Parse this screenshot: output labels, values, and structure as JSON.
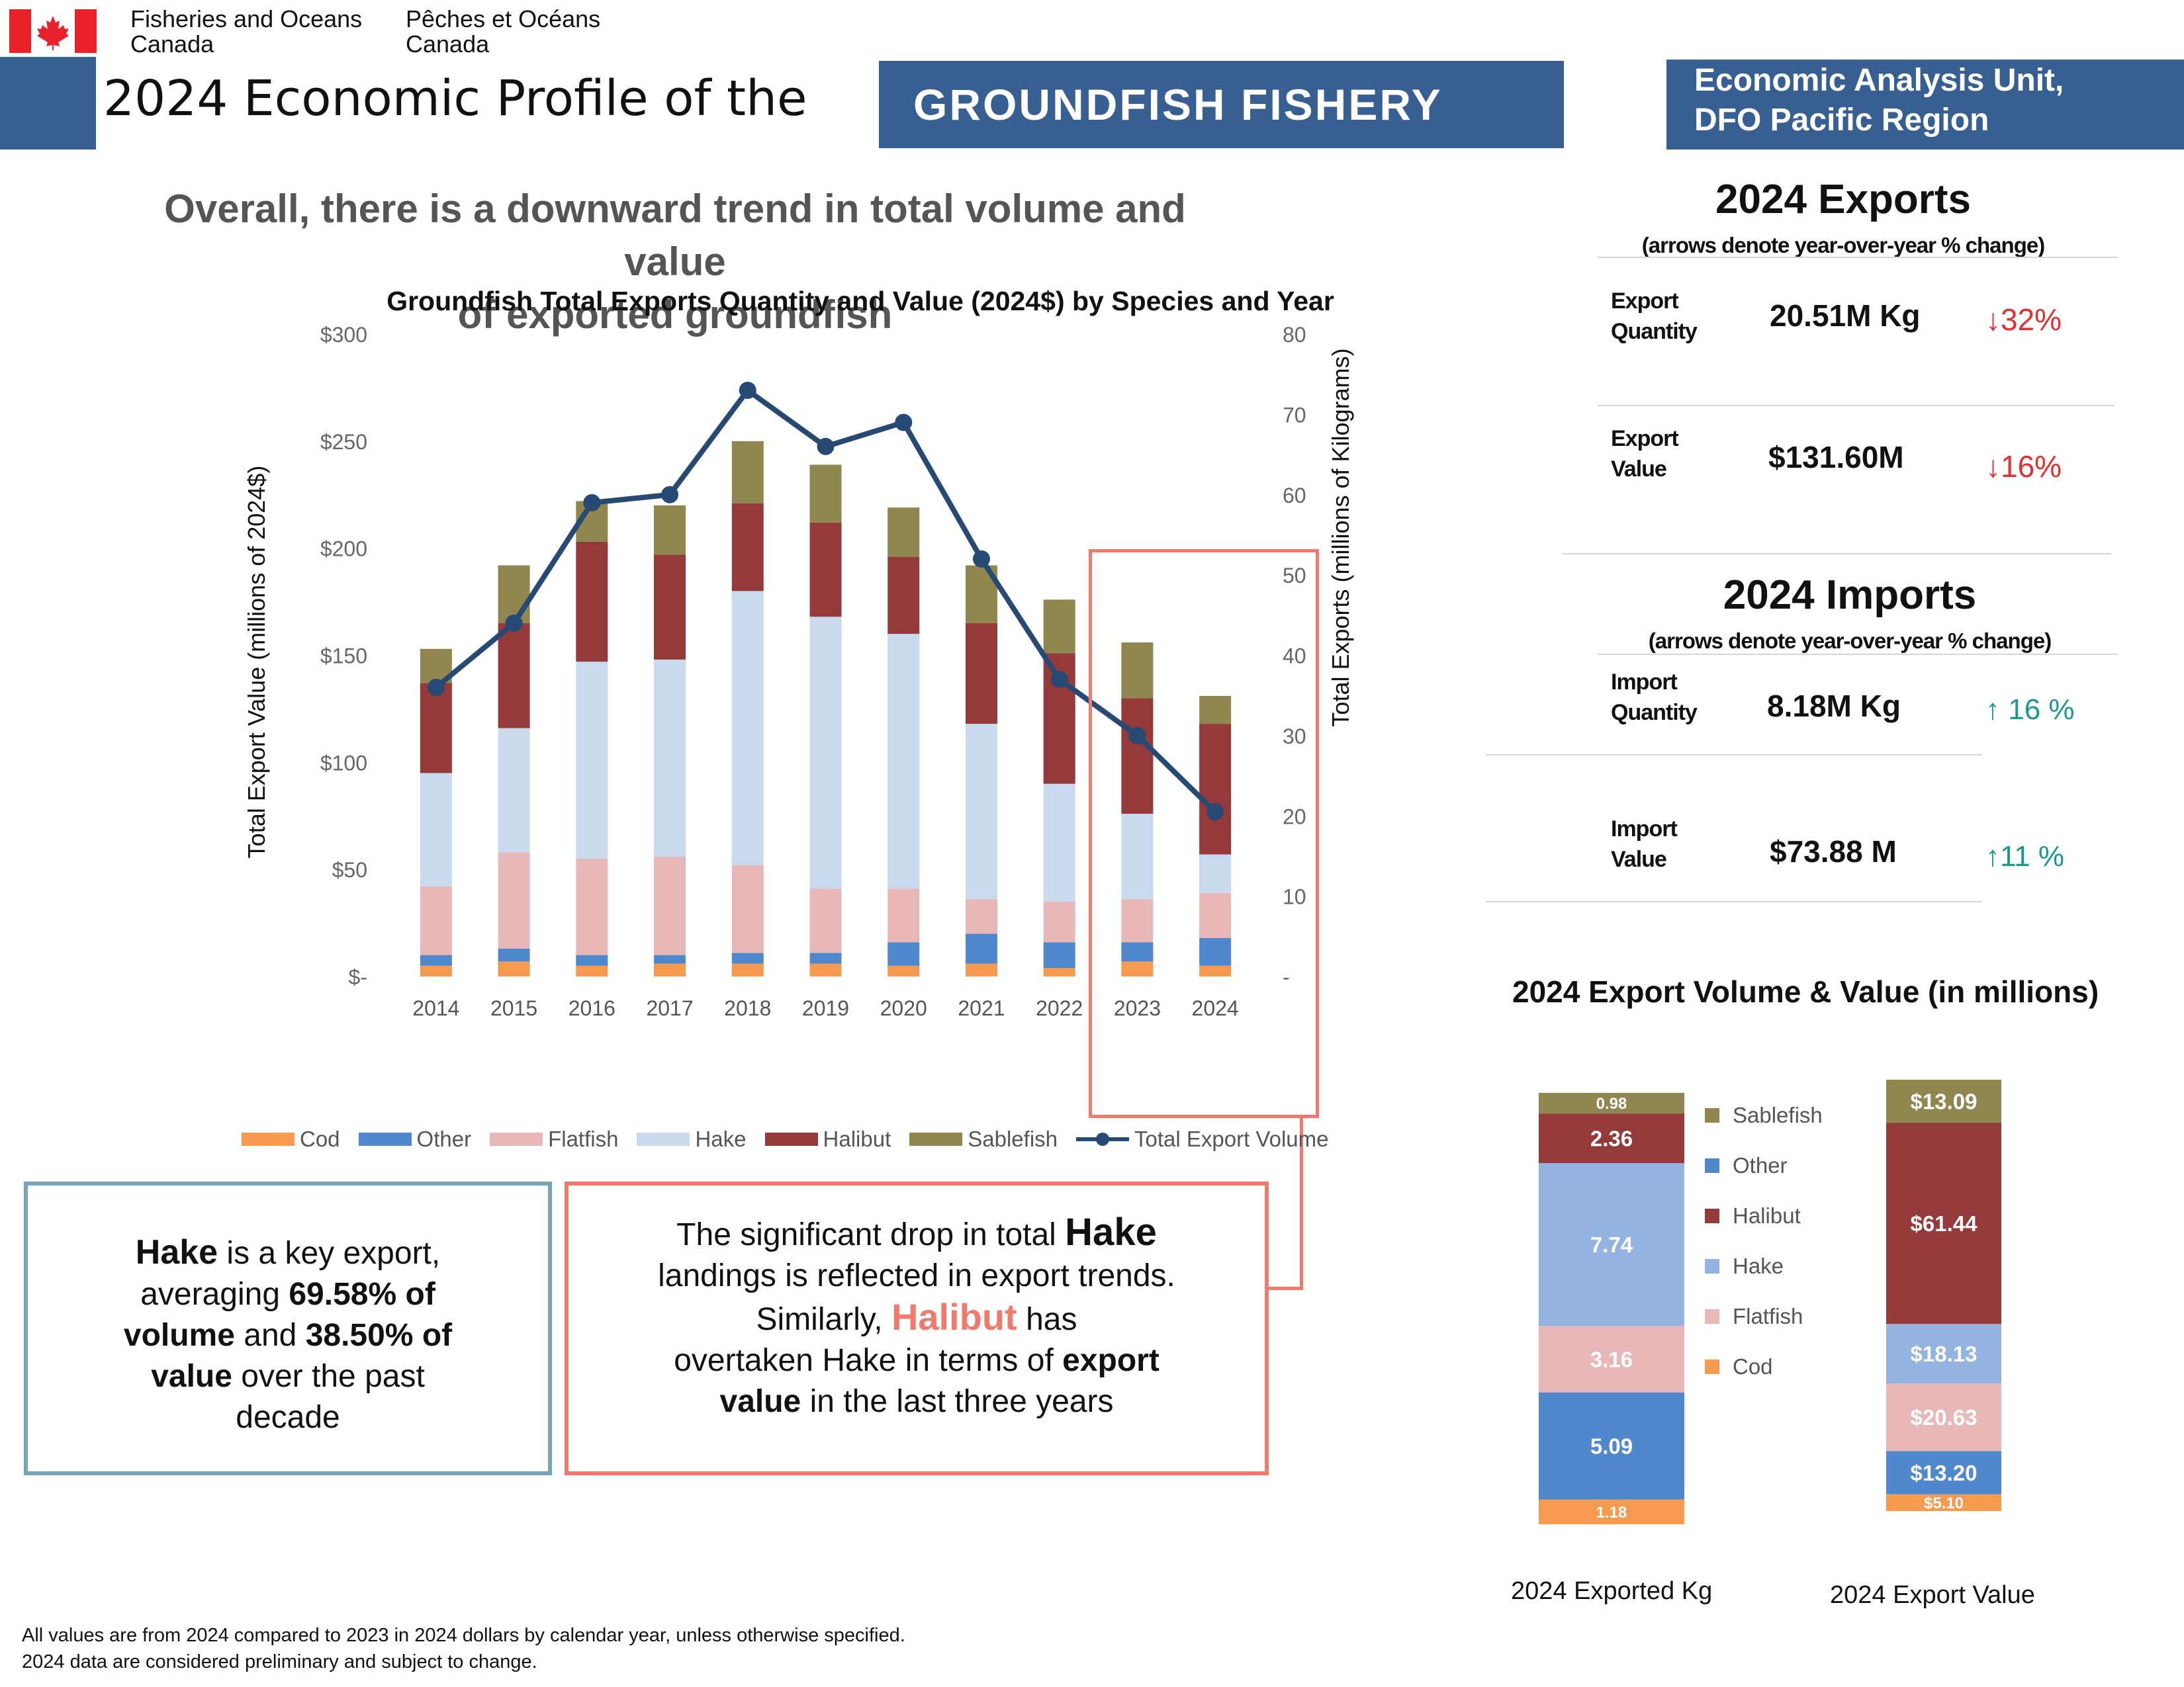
{
  "header": {
    "dept_en_1": "Fisheries and Oceans",
    "dept_en_2": "Canada",
    "dept_fr_1": "Pêches et Océans",
    "dept_fr_2": "Canada",
    "title": "2024 Economic Profile of the",
    "banner": "GROUNDFISH FISHERY",
    "unit_1": "Economic Analysis Unit,",
    "unit_2": "DFO Pacific Region",
    "flag_colors": {
      "red": "#e8212b",
      "white": "#ffffff"
    }
  },
  "headline": {
    "line1": "Overall, there is a downward trend in total volume and value",
    "line2": "of exported groundfish"
  },
  "chart_data": [
    {
      "type": "bar",
      "title": "Groundfish Total Exports Quantity and Value (2024$) by Species and Year",
      "ylabel": "Total Export Value (millions of 2024$)",
      "y2label": "Total Exports (millions of Kilograms)",
      "ylim": [
        0,
        300
      ],
      "y2lim": [
        0,
        80
      ],
      "yticks": [
        "$-",
        "$50",
        "$100",
        "$150",
        "$200",
        "$250",
        "$300"
      ],
      "y2ticks": [
        "-",
        "10",
        "20",
        "30",
        "40",
        "50",
        "60",
        "70",
        "80"
      ],
      "categories": [
        "2014",
        "2015",
        "2016",
        "2017",
        "2018",
        "2019",
        "2020",
        "2021",
        "2022",
        "2023",
        "2024"
      ],
      "stacked": true,
      "legend_position": "bottom",
      "series": [
        {
          "name": "Cod",
          "color": "#f59a4e",
          "values": [
            5,
            7,
            5,
            6,
            6,
            6,
            5,
            6,
            4,
            7,
            5
          ]
        },
        {
          "name": "Other",
          "color": "#4f88cc",
          "values": [
            5,
            6,
            5,
            4,
            5,
            5,
            11,
            14,
            12,
            9,
            13
          ]
        },
        {
          "name": "Flatfish",
          "color": "#e8b8b8",
          "values": [
            32,
            45,
            45,
            46,
            41,
            30,
            25,
            16,
            19,
            20,
            21
          ]
        },
        {
          "name": "Hake",
          "color": "#c9d9ee",
          "values": [
            53,
            58,
            92,
            92,
            128,
            127,
            119,
            82,
            55,
            40,
            18
          ]
        },
        {
          "name": "Halibut",
          "color": "#943a3a",
          "values": [
            42,
            49,
            56,
            49,
            41,
            44,
            36,
            47,
            61,
            54,
            61
          ]
        },
        {
          "name": "Sablefish",
          "color": "#8f8650",
          "values": [
            16,
            27,
            19,
            23,
            29,
            27,
            23,
            27,
            25,
            26,
            13
          ]
        },
        {
          "name": "Total Export Volume",
          "type": "line",
          "axis": "right",
          "color": "#264a73",
          "values": [
            36,
            44,
            59,
            60,
            73,
            66,
            69,
            52,
            37,
            30,
            20.5
          ]
        }
      ]
    },
    {
      "type": "bar",
      "title": "2024 Export Volume & Value (in millions)",
      "categories": [
        "2024 Exported Kg",
        "2024 Export Value"
      ],
      "stacked": true,
      "series": [
        {
          "name": "Cod",
          "color": "#f59a4e",
          "values": [
            1.18,
            5.1
          ],
          "labels": [
            "1.18",
            "$5.10"
          ]
        },
        {
          "name": "Other",
          "color": "#4f88cc",
          "values": [
            5.09,
            13.2
          ],
          "labels": [
            "5.09",
            "$13.20"
          ]
        },
        {
          "name": "Flatfish",
          "color": "#e8b8b8",
          "values": [
            3.16,
            20.63
          ],
          "labels": [
            "3.16",
            "$20.63"
          ]
        },
        {
          "name": "Hake",
          "color": "#93b3e0",
          "values": [
            7.74,
            18.13
          ],
          "labels": [
            "7.74",
            "$18.13"
          ]
        },
        {
          "name": "Halibut",
          "color": "#943a3a",
          "values": [
            2.36,
            61.44
          ],
          "labels": [
            "2.36",
            "$61.44"
          ]
        },
        {
          "name": "Sablefish",
          "color": "#8f8650",
          "values": [
            0.98,
            13.09
          ],
          "labels": [
            "0.98",
            "$13.09"
          ]
        }
      ]
    }
  ],
  "exports": {
    "title": "2024 Exports",
    "note": "(arrows denote year-over-year % change)",
    "qty_label_1": "Export",
    "qty_label_2": "Quantity",
    "qty_value": "20.51M Kg",
    "qty_change": "↓32%",
    "val_label_1": "Export",
    "val_label_2": "Value",
    "val_value": "$131.60M",
    "val_change": "↓16%"
  },
  "imports": {
    "title": "2024 Imports",
    "note": "(arrows denote year-over-year % change)",
    "qty_label_1": "Import",
    "qty_label_2": "Quantity",
    "qty_value": "8.18M  Kg",
    "qty_change": "↑ 16 %",
    "val_label_1": "Import",
    "val_label_2": "Value",
    "val_value": "$73.88 M",
    "val_change": "↑11 %"
  },
  "callout_left": {
    "p1": "Hake",
    "p2": " is a key export,",
    "p3": "averaging ",
    "p4": "69.58% of",
    "p5": "volume",
    "p6": " and ",
    "p7": "38.50% of",
    "p8": "value",
    "p9": " over the past",
    "p10": "decade"
  },
  "callout_right": {
    "p1": "The significant drop in total ",
    "p2": "Hake",
    "p3": "landings is reflected in export trends.",
    "p4": "Similarly, ",
    "p5": "Halibut",
    "p6": " has",
    "p7": "overtaken Hake in terms of ",
    "p8": "export",
    "p9": "value",
    "p10": " in the last three years"
  },
  "footer": {
    "line1": "All values are from 2024 compared to 2023 in 2024 dollars by calendar year, unless otherwise specified.",
    "line2": "2024 data are considered preliminary and subject to change."
  }
}
